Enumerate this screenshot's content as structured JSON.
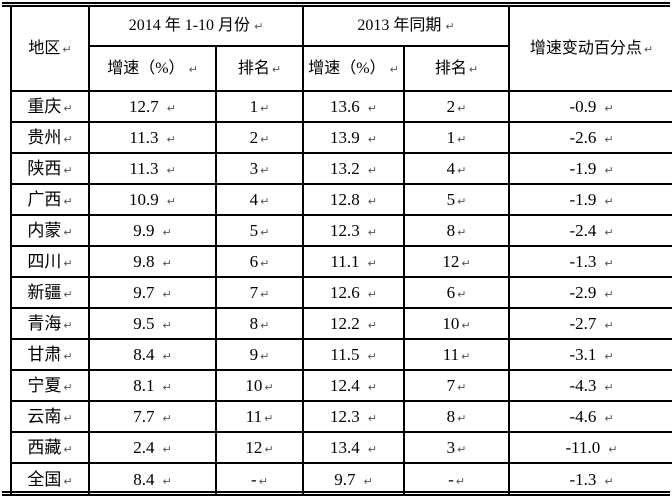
{
  "table": {
    "paragraph_mark": "↵",
    "colors": {
      "border": "#000000",
      "text": "#000000",
      "background": "#ffffff",
      "paragraph_mark": "#555555"
    },
    "header": {
      "region": "地区",
      "group_2014": "2014 年 1-10 月份",
      "group_2013": "2013 年同期",
      "growth_2014": "增速（%）",
      "rank_2014": "排名",
      "growth_2013": "增速（%）",
      "rank_2013": "排名",
      "change": "增速变动百分点"
    },
    "rows": [
      {
        "region": "重庆",
        "g2014": "12.7",
        "r2014": "1",
        "g2013": "13.6",
        "r2013": "2",
        "change": "-0.9"
      },
      {
        "region": "贵州",
        "g2014": "11.3",
        "r2014": "2",
        "g2013": "13.9",
        "r2013": "1",
        "change": "-2.6"
      },
      {
        "region": "陕西",
        "g2014": "11.3",
        "r2014": "3",
        "g2013": "13.2",
        "r2013": "4",
        "change": "-1.9"
      },
      {
        "region": "广西",
        "g2014": "10.9",
        "r2014": "4",
        "g2013": "12.8",
        "r2013": "5",
        "change": "-1.9"
      },
      {
        "region": "内蒙",
        "g2014": "9.9",
        "r2014": "5",
        "g2013": "12.3",
        "r2013": "8",
        "change": "-2.4"
      },
      {
        "region": "四川",
        "g2014": "9.8",
        "r2014": "6",
        "g2013": "11.1",
        "r2013": "12",
        "change": "-1.3"
      },
      {
        "region": "新疆",
        "g2014": "9.7",
        "r2014": "7",
        "g2013": "12.6",
        "r2013": "6",
        "change": "-2.9"
      },
      {
        "region": "青海",
        "g2014": "9.5",
        "r2014": "8",
        "g2013": "12.2",
        "r2013": "10",
        "change": "-2.7"
      },
      {
        "region": "甘肃",
        "g2014": "8.4",
        "r2014": "9",
        "g2013": "11.5",
        "r2013": "11",
        "change": "-3.1"
      },
      {
        "region": "宁夏",
        "g2014": "8.1",
        "r2014": "10",
        "g2013": "12.4",
        "r2013": "7",
        "change": "-4.3"
      },
      {
        "region": "云南",
        "g2014": "7.7",
        "r2014": "11",
        "g2013": "12.3",
        "r2013": "8",
        "change": "-4.6"
      },
      {
        "region": "西藏",
        "g2014": "2.4",
        "r2014": "12",
        "g2013": "13.4",
        "r2013": "3",
        "change": "-11.0"
      },
      {
        "region": "全国",
        "g2014": "8.4",
        "r2014": "-",
        "g2013": "9.7",
        "r2013": "-",
        "change": "-1.3"
      }
    ]
  }
}
